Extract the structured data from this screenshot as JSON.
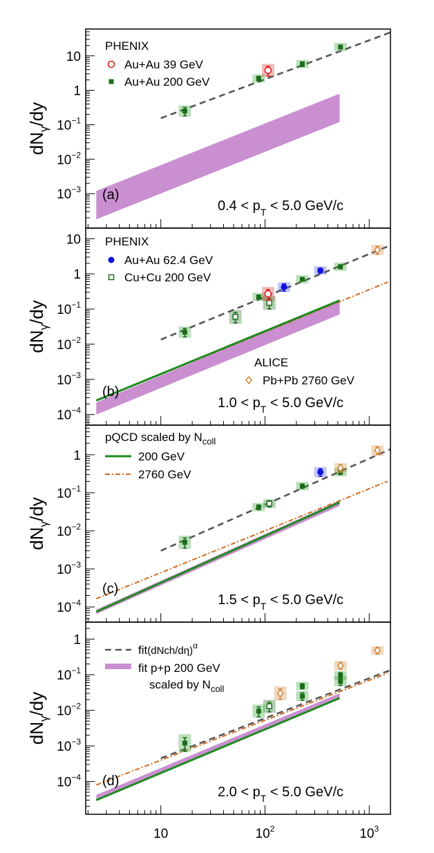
{
  "chart_data": {
    "type": "scatter",
    "x_scale": "log",
    "xlim": [
      1.9,
      1600
    ],
    "x_ticks": [
      {
        "v": 10,
        "base": "10",
        "exp": ""
      },
      {
        "v": 100,
        "base": "10",
        "exp": "2"
      },
      {
        "v": 1000,
        "base": "10",
        "exp": "3"
      }
    ],
    "colors": {
      "au200": "#1a6e1a",
      "au39": "#e02020",
      "au62": "#1010e0",
      "cucu": "#1a6e1a",
      "alice": "#d2883c",
      "fit": "#555555",
      "band": "#c98fd0",
      "pqcd200": "#1e8a1e",
      "pqcd2760": "#d2691e"
    },
    "panels": [
      {
        "label": "(a)",
        "range_text": [
          "0.4 < p",
          "T",
          " < 5.0 GeV/c"
        ],
        "ylabel": [
          "dN",
          "γ",
          "/dy"
        ],
        "ylim": [
          0.0001,
          60
        ],
        "yticks": [
          {
            "v": 10,
            "base": "10",
            "exp": ""
          },
          {
            "v": 1,
            "base": "1",
            "exp": ""
          },
          {
            "v": 0.1,
            "base": "10",
            "exp": "−1"
          },
          {
            "v": 0.01,
            "base": "10",
            "exp": "−2"
          },
          {
            "v": 0.001,
            "base": "10",
            "exp": "−3"
          }
        ],
        "legend": {
          "title": "PHENIX",
          "items": [
            "Au+Au 39 GeV",
            "Au+Au 200 GeV"
          ]
        },
        "band": {
          "x": [
            2.4,
            520
          ],
          "low": [
            0.00018,
            0.12
          ],
          "high": [
            0.0012,
            0.8
          ]
        },
        "fit_line": {
          "x": [
            10,
            1600
          ],
          "y": [
            0.155,
            48
          ]
        },
        "points_au200": [
          {
            "x": 17,
            "y": 0.25,
            "err": 0.07
          },
          {
            "x": 87,
            "y": 2.2,
            "err": 0.35
          },
          {
            "x": 228,
            "y": 5.8,
            "err": 0.9
          },
          {
            "x": 530,
            "y": 18,
            "err": 2
          }
        ],
        "points_au39": [
          {
            "x": 107,
            "y": 3.8,
            "err": 1.2
          }
        ]
      },
      {
        "label": "(b)",
        "range_text": [
          "1.0 < p",
          "T",
          " < 5.0 GeV/c"
        ],
        "ylabel": [
          "dN",
          "γ",
          "/dy"
        ],
        "ylim": [
          5e-05,
          20
        ],
        "yticks": [
          {
            "v": 10,
            "base": "10",
            "exp": ""
          },
          {
            "v": 1,
            "base": "1",
            "exp": ""
          },
          {
            "v": 0.1,
            "base": "10",
            "exp": "−1"
          },
          {
            "v": 0.01,
            "base": "10",
            "exp": "−2"
          },
          {
            "v": 0.001,
            "base": "10",
            "exp": "−3"
          },
          {
            "v": 0.0001,
            "base": "10",
            "exp": "−4"
          }
        ],
        "legend": {
          "title": "PHENIX",
          "items": [
            "Au+Au 62.4 GeV",
            "Cu+Cu 200 GeV"
          ]
        },
        "legend2": {
          "title": "ALICE",
          "items": [
            "Pb+Pb 2760 GeV"
          ]
        },
        "band": {
          "x": [
            2.4,
            520
          ],
          "low": [
            0.0001,
            0.07
          ],
          "high": [
            0.00022,
            0.17
          ]
        },
        "fit_line": {
          "x": [
            10,
            1600
          ],
          "y": [
            0.0135,
            6.5
          ]
        },
        "pqcd200": {
          "x": [
            2.4,
            520
          ],
          "y": [
            0.00025,
            0.175
          ]
        },
        "pqcd2760": {
          "x": [
            2.4,
            1500
          ],
          "y": [
            0.00025,
            0.58
          ]
        },
        "points_au200": [
          {
            "x": 17,
            "y": 0.022,
            "err": 0.006
          },
          {
            "x": 87,
            "y": 0.22,
            "err": 0.03
          },
          {
            "x": 228,
            "y": 0.7,
            "err": 0.08
          },
          {
            "x": 530,
            "y": 1.6,
            "err": 0.2
          }
        ],
        "points_au39": [
          {
            "x": 107,
            "y": 0.27,
            "err": 0.09
          }
        ],
        "points_au62": [
          {
            "x": 152,
            "y": 0.42,
            "err": 0.1
          },
          {
            "x": 340,
            "y": 1.25,
            "err": 0.2
          }
        ],
        "points_cucu": [
          {
            "x": 52,
            "y": 0.06,
            "err": 0.02
          },
          {
            "x": 110,
            "y": 0.15,
            "err": 0.05
          }
        ],
        "points_alice": [
          {
            "x": 1200,
            "y": 4.8,
            "err": 1.2
          }
        ]
      },
      {
        "label": "(c)",
        "range_text": [
          "1.5 < p",
          "T",
          " < 5.0 GeV/c"
        ],
        "ylabel": [
          "dN",
          "γ",
          "/dy"
        ],
        "ylim": [
          4e-05,
          6
        ],
        "yticks": [
          {
            "v": 1,
            "base": "1",
            "exp": ""
          },
          {
            "v": 0.1,
            "base": "10",
            "exp": "−1"
          },
          {
            "v": 0.01,
            "base": "10",
            "exp": "−2"
          },
          {
            "v": 0.001,
            "base": "10",
            "exp": "−3"
          },
          {
            "v": 0.0001,
            "base": "10",
            "exp": "−4"
          }
        ],
        "legend": {
          "title_parts": [
            "pQCD scaled by N",
            "coll"
          ],
          "items": [
            "200 GeV",
            "2760 GeV"
          ]
        },
        "band": {
          "x": [
            2.4,
            520
          ],
          "low": [
            6.5e-05,
            0.045
          ],
          "high": [
            8.5e-05,
            0.062
          ]
        },
        "fit_line": {
          "x": [
            10,
            1600
          ],
          "y": [
            0.003,
            1.4
          ]
        },
        "pqcd200": {
          "x": [
            2.4,
            520
          ],
          "y": [
            7.5e-05,
            0.056
          ]
        },
        "pqcd2760": {
          "x": [
            2.4,
            1500
          ],
          "y": [
            0.000165,
            0.2
          ]
        },
        "points_au200": [
          {
            "x": 17,
            "y": 0.005,
            "err": 0.0015
          },
          {
            "x": 87,
            "y": 0.042,
            "err": 0.006
          },
          {
            "x": 228,
            "y": 0.15,
            "err": 0.02
          },
          {
            "x": 530,
            "y": 0.35,
            "err": 0.05
          }
        ],
        "points_au62": [
          {
            "x": 340,
            "y": 0.35,
            "err": 0.08
          }
        ],
        "points_cucu": [
          {
            "x": 110,
            "y": 0.052,
            "err": 0.01
          }
        ],
        "points_alice": [
          {
            "x": 530,
            "y": 0.45,
            "err": 0.1
          },
          {
            "x": 1200,
            "y": 1.3,
            "err": 0.3
          }
        ]
      },
      {
        "label": "(d)",
        "range_text": [
          "2.0 < p",
          "T",
          " < 5.0 GeV/c"
        ],
        "ylabel": [
          "dN",
          "γ",
          "/dy"
        ],
        "ylim": [
          1.2e-05,
          3
        ],
        "yticks": [
          {
            "v": 1,
            "base": "1",
            "exp": ""
          },
          {
            "v": 0.1,
            "base": "10",
            "exp": "−1"
          },
          {
            "v": 0.01,
            "base": "10",
            "exp": "−2"
          },
          {
            "v": 0.001,
            "base": "10",
            "exp": "−3"
          },
          {
            "v": 0.0001,
            "base": "10",
            "exp": "−4"
          }
        ],
        "legend": {
          "fit_parts": [
            "fit",
            "(dNch/dη)",
            "α"
          ],
          "band_parts": [
            "fit p+p 200 GeV",
            "scaled by N",
            "coll"
          ]
        },
        "band": {
          "x": [
            2.4,
            520
          ],
          "low": [
            3e-05,
            0.022
          ],
          "high": [
            4.2e-05,
            0.03
          ]
        },
        "fit_line": {
          "x": [
            10,
            1600
          ],
          "y": [
            0.00045,
            0.135
          ]
        },
        "pqcd200": {
          "x": [
            2.4,
            520
          ],
          "y": [
            3e-05,
            0.022
          ]
        },
        "pqcd2760": {
          "x": [
            2.4,
            1500
          ],
          "y": [
            8e-05,
            0.11
          ]
        },
        "points_au200": [
          {
            "x": 17,
            "y": 0.0012,
            "err": 0.0005
          },
          {
            "x": 87,
            "y": 0.0095,
            "err": 0.003
          },
          {
            "x": 228,
            "y": 0.048,
            "err": 0.008
          },
          {
            "x": 228,
            "y": 0.025,
            "err": 0.006
          },
          {
            "x": 530,
            "y": 0.065,
            "err": 0.015
          },
          {
            "x": 530,
            "y": 0.095,
            "err": 0.02
          }
        ],
        "points_cucu": [
          {
            "x": 110,
            "y": 0.013,
            "err": 0.004
          }
        ],
        "points_alice": [
          {
            "x": 140,
            "y": 0.03,
            "err": 0.01
          },
          {
            "x": 530,
            "y": 0.18,
            "err": 0.04
          },
          {
            "x": 1200,
            "y": 0.48,
            "err": 0.1
          }
        ]
      }
    ]
  }
}
